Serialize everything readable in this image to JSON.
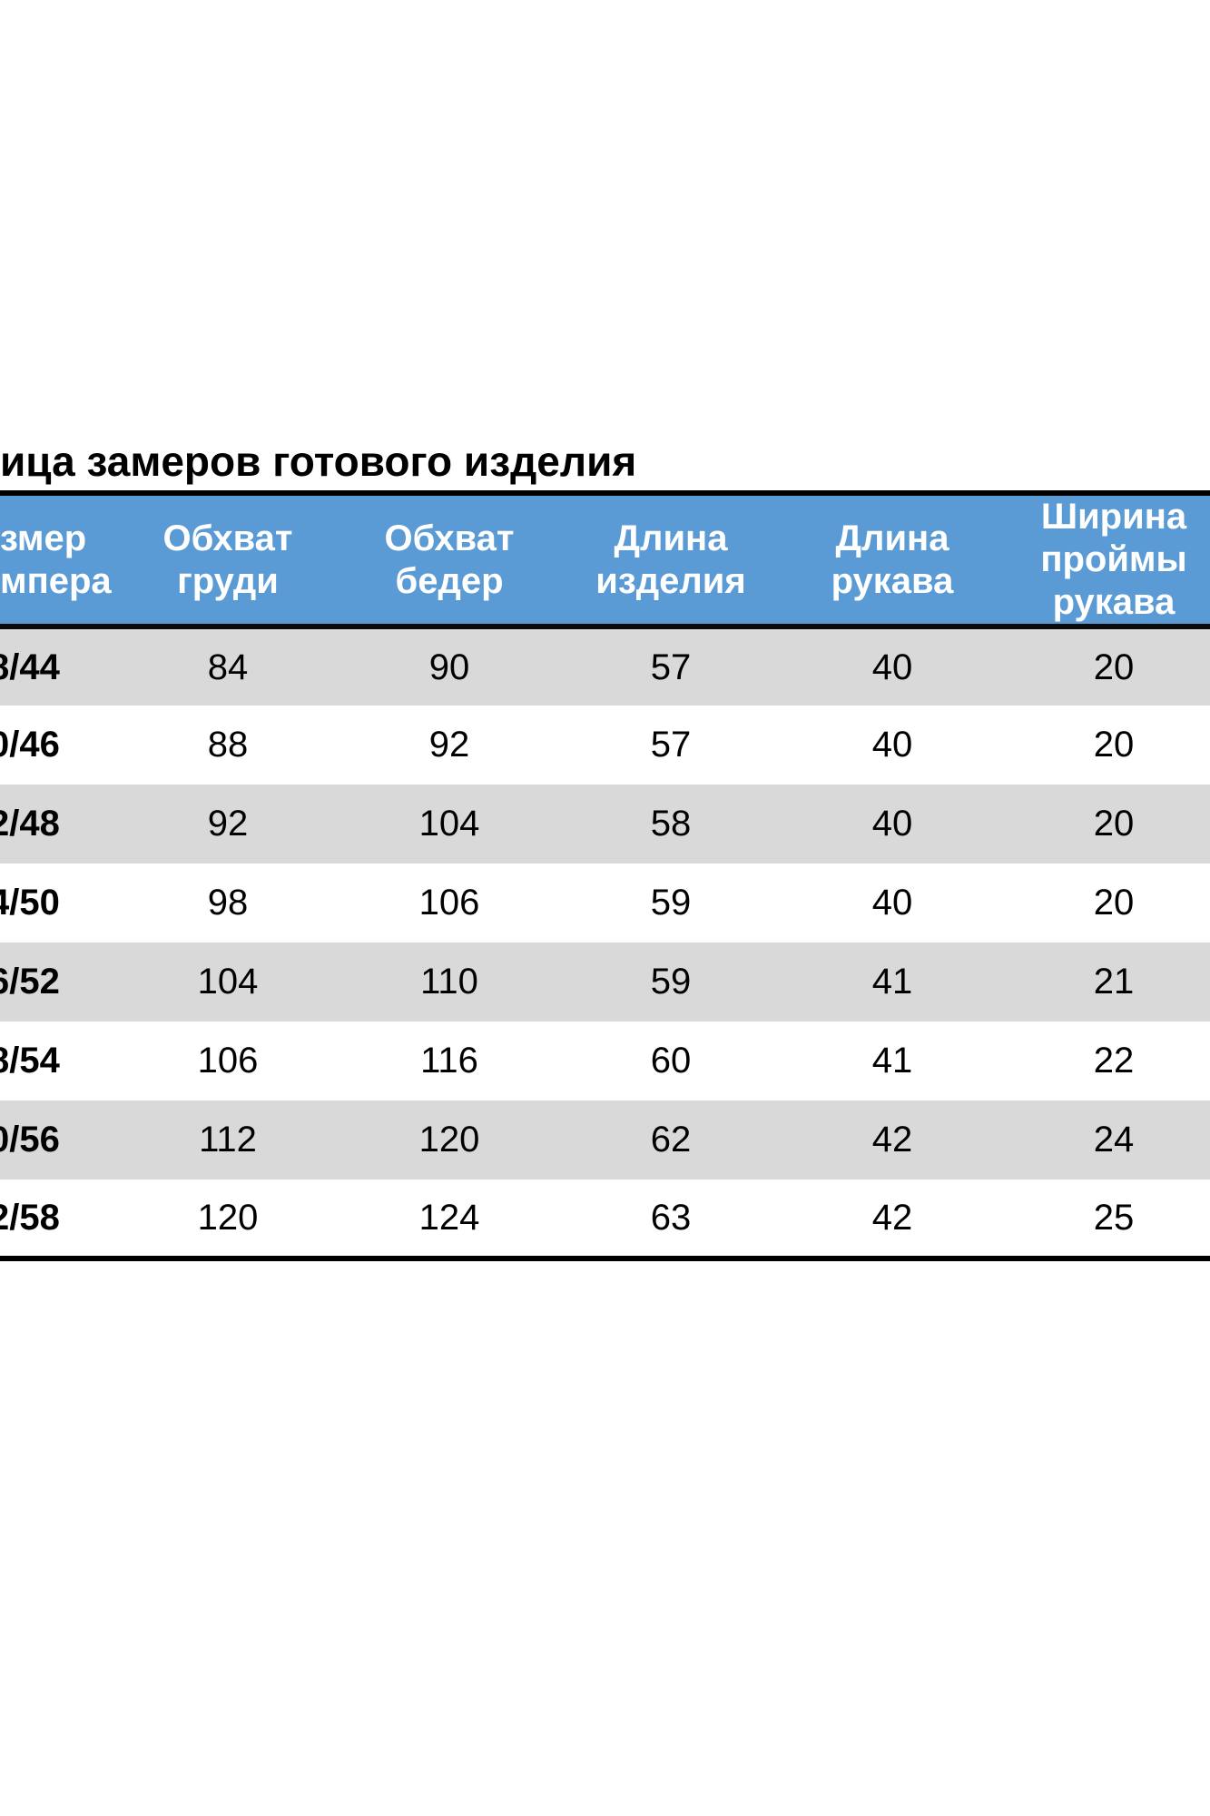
{
  "title": {
    "text": "ица замеров готового изделия"
  },
  "colors": {
    "header_bg": "#5b9bd5",
    "header_text": "#ffffff",
    "stripe_bg": "#d9d9d9",
    "row_bg": "#ffffff",
    "rule": "#000000",
    "body_text": "#000000"
  },
  "table": {
    "columns": [
      {
        "id": "size",
        "lines": [
          "змер",
          "мпера"
        ]
      },
      {
        "id": "chest",
        "lines": [
          "Обхват",
          "груди"
        ]
      },
      {
        "id": "hips",
        "lines": [
          "Обхват",
          "бедер"
        ]
      },
      {
        "id": "length",
        "lines": [
          "Длина",
          "изделия"
        ]
      },
      {
        "id": "sleeve",
        "lines": [
          "Длина",
          "рукава"
        ]
      },
      {
        "id": "armhole",
        "lines": [
          "Ширина",
          "проймы",
          "рукава"
        ]
      }
    ],
    "rows": [
      {
        "size": "8/44",
        "chest": "84",
        "hips": "90",
        "length": "57",
        "sleeve": "40",
        "armhole": "20"
      },
      {
        "size": "0/46",
        "chest": "88",
        "hips": "92",
        "length": "57",
        "sleeve": "40",
        "armhole": "20"
      },
      {
        "size": "2/48",
        "chest": "92",
        "hips": "104",
        "length": "58",
        "sleeve": "40",
        "armhole": "20"
      },
      {
        "size": "4/50",
        "chest": "98",
        "hips": "106",
        "length": "59",
        "sleeve": "40",
        "armhole": "20"
      },
      {
        "size": "6/52",
        "chest": "104",
        "hips": "110",
        "length": "59",
        "sleeve": "41",
        "armhole": "21"
      },
      {
        "size": "8/54",
        "chest": "106",
        "hips": "116",
        "length": "60",
        "sleeve": "41",
        "armhole": "22"
      },
      {
        "size": "0/56",
        "chest": "112",
        "hips": "120",
        "length": "62",
        "sleeve": "42",
        "armhole": "24"
      },
      {
        "size": "2/58",
        "chest": "120",
        "hips": "124",
        "length": "63",
        "sleeve": "42",
        "armhole": "25"
      }
    ]
  }
}
